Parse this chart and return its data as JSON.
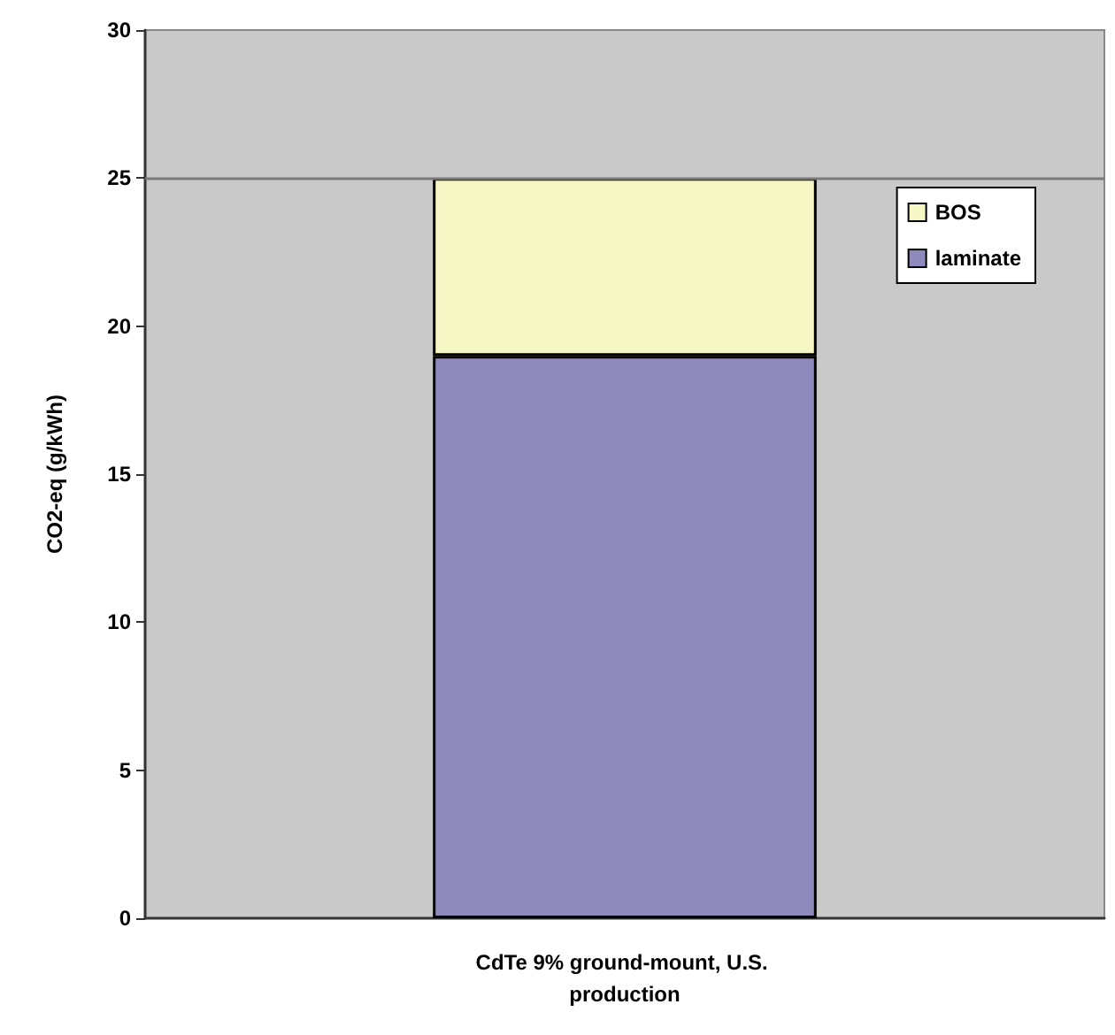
{
  "chart_data": {
    "type": "bar",
    "stacked": true,
    "ylabel": "CO2-eq (g/kWh)",
    "categories": [
      "CdTe 9% ground-mount, U.S. production"
    ],
    "series": [
      {
        "name": "laminate",
        "color": "#8e8abb",
        "values": [
          19
        ]
      },
      {
        "name": "BOS",
        "color": "#f5f7c4",
        "values": [
          6
        ]
      }
    ],
    "ylim": [
      0,
      30
    ],
    "yticks": [
      0,
      5,
      10,
      15,
      20,
      25,
      30
    ],
    "grid": false,
    "legend": "top right",
    "ref_lines": [
      {
        "axis": "y",
        "value": 25,
        "color": "#7a7a7a"
      }
    ]
  }
}
